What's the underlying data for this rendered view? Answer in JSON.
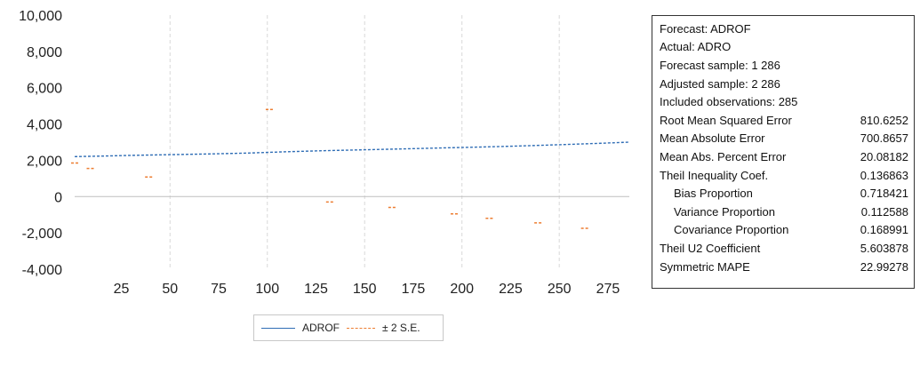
{
  "chart_data": {
    "type": "line",
    "x_range": [
      1,
      286
    ],
    "ylim": [
      -4000,
      10000
    ],
    "yticks": [
      "10,000",
      "8,000",
      "6,000",
      "4,000",
      "2,000",
      "0",
      "-2,000",
      "-4,000"
    ],
    "ytick_values": [
      10000,
      8000,
      6000,
      4000,
      2000,
      0,
      -2000,
      -4000
    ],
    "xticks": [
      "25",
      "50",
      "75",
      "100",
      "125",
      "150",
      "175",
      "200",
      "225",
      "250",
      "275"
    ],
    "xtick_values": [
      25,
      50,
      75,
      100,
      125,
      150,
      175,
      200,
      225,
      250,
      275
    ],
    "vertical_gridlines_at": [
      50,
      100,
      150,
      200,
      250
    ],
    "zero_line": true,
    "series": [
      {
        "name": "ADROF",
        "color": "#2f6db5",
        "style": "dashed-step",
        "points": [
          [
            1,
            2200
          ],
          [
            15,
            2230
          ],
          [
            30,
            2270
          ],
          [
            50,
            2310
          ],
          [
            70,
            2350
          ],
          [
            90,
            2400
          ],
          [
            110,
            2470
          ],
          [
            130,
            2530
          ],
          [
            150,
            2580
          ],
          [
            170,
            2630
          ],
          [
            190,
            2680
          ],
          [
            210,
            2730
          ],
          [
            230,
            2790
          ],
          [
            250,
            2860
          ],
          [
            270,
            2930
          ],
          [
            286,
            3000
          ]
        ]
      },
      {
        "name": "± 2 S.E.",
        "color": "#ed7d31",
        "style": "dash-markers",
        "points": [
          [
            1,
            1850
          ],
          [
            9,
            1550
          ],
          [
            39,
            1080
          ],
          [
            101,
            4800
          ],
          [
            132,
            -300
          ],
          [
            164,
            -600
          ],
          [
            196,
            -950
          ],
          [
            214,
            -1200
          ],
          [
            239,
            -1450
          ],
          [
            263,
            -1750
          ]
        ]
      }
    ],
    "legend": [
      "ADROF",
      "± 2 S.E."
    ],
    "legend_position": "bottom"
  },
  "stats": [
    {
      "label": "Forecast: ADROF",
      "value": "",
      "indent": false
    },
    {
      "label": "Actual: ADRO",
      "value": "",
      "indent": false
    },
    {
      "label": "Forecast sample: 1 286",
      "value": "",
      "indent": false
    },
    {
      "label": "Adjusted sample: 2 286",
      "value": "",
      "indent": false
    },
    {
      "label": "Included observations: 285",
      "value": "",
      "indent": false
    },
    {
      "label": "Root Mean Squared Error",
      "value": "810.6252",
      "indent": false
    },
    {
      "label": "Mean Absolute Error",
      "value": "700.8657",
      "indent": false
    },
    {
      "label": "Mean Abs. Percent Error",
      "value": "20.08182",
      "indent": false
    },
    {
      "label": "Theil Inequality Coef.",
      "value": "0.136863",
      "indent": false
    },
    {
      "label": "Bias Proportion",
      "value": "0.718421",
      "indent": true
    },
    {
      "label": "Variance Proportion",
      "value": "0.112588",
      "indent": true
    },
    {
      "label": "Covariance Proportion",
      "value": "0.168991",
      "indent": true
    },
    {
      "label": "Theil U2 Coefficient",
      "value": "5.603878",
      "indent": false
    },
    {
      "label": "Symmetric MAPE",
      "value": "22.99278",
      "indent": false
    }
  ]
}
